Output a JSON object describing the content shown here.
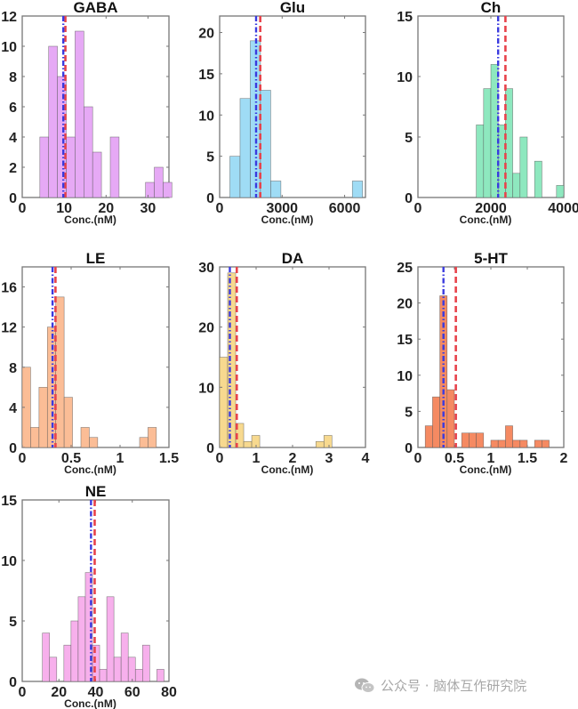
{
  "chart_data": [
    {
      "type": "bar",
      "title": "GABA",
      "xlabel": "Conc.(nM)",
      "ylabel": "",
      "color": "#e6a9f5",
      "xlim": [
        0,
        35
      ],
      "ylim": [
        0,
        12
      ],
      "xticks": [
        0,
        10,
        20,
        30
      ],
      "yticks": [
        0,
        2,
        4,
        6,
        8,
        10,
        12
      ],
      "bin_start": 4.2,
      "bin_width": 2.1,
      "counts": [
        4,
        10,
        8,
        4,
        11,
        6,
        3,
        0,
        4,
        0,
        0,
        0,
        1,
        2,
        1
      ],
      "median": 9.8,
      "mean": 10.3
    },
    {
      "type": "bar",
      "title": "Glu",
      "xlabel": "Conc.(nM)",
      "ylabel": "",
      "color": "#9fdcf5",
      "xlim": [
        0,
        7000
      ],
      "ylim": [
        0,
        22
      ],
      "xticks": [
        0,
        3000,
        6000
      ],
      "yticks": [
        0,
        5,
        10,
        15,
        20
      ],
      "bin_start": 490,
      "bin_width": 490,
      "counts": [
        5,
        12,
        19,
        13,
        2,
        0,
        0,
        0,
        0,
        0,
        0,
        0,
        2
      ],
      "median": 1750,
      "mean": 1950
    },
    {
      "type": "bar",
      "title": "Ch",
      "xlabel": "Conc.(nM)",
      "ylabel": "",
      "color": "#8ee8bf",
      "xlim": [
        0,
        4000
      ],
      "ylim": [
        0,
        15
      ],
      "xticks": [
        0,
        2000,
        4000
      ],
      "yticks": [
        0,
        5,
        10,
        15
      ],
      "bin_start": 1600,
      "bin_width": 200,
      "counts": [
        6,
        9,
        11,
        6,
        9,
        2,
        5,
        0,
        3,
        0,
        0,
        1
      ],
      "median": 2200,
      "mean": 2400
    },
    {
      "type": "bar",
      "title": "LE",
      "xlabel": "Conc.(nM)",
      "ylabel": "",
      "color": "#fbbd96",
      "xlim": [
        0,
        1.5
      ],
      "ylim": [
        0,
        18
      ],
      "xticks": [
        0,
        0.5,
        1,
        1.5
      ],
      "yticks": [
        0,
        4,
        8,
        12,
        16
      ],
      "bin_start": 0,
      "bin_width": 0.0857,
      "counts": [
        8,
        2,
        6,
        12,
        15,
        5,
        0,
        2,
        1,
        0,
        0,
        0,
        0,
        0,
        1,
        2
      ],
      "median": 0.31,
      "mean": 0.34
    },
    {
      "type": "bar",
      "title": "DA",
      "xlabel": "Conc.(nM)",
      "ylabel": "",
      "color": "#f7d98f",
      "xlim": [
        0,
        4
      ],
      "ylim": [
        0,
        30
      ],
      "xticks": [
        0,
        1,
        2,
        3,
        4
      ],
      "yticks": [
        0,
        10,
        20,
        30
      ],
      "bin_start": 0,
      "bin_width": 0.22,
      "counts": [
        15,
        29,
        4,
        1,
        2,
        0,
        0,
        0,
        0,
        0,
        0,
        0,
        1,
        2
      ],
      "median": 0.28,
      "mean": 0.47
    },
    {
      "type": "bar",
      "title": "5-HT",
      "xlabel": "Conc.(nM)",
      "ylabel": "",
      "color": "#f58a62",
      "xlim": [
        0,
        2
      ],
      "ylim": [
        0,
        25
      ],
      "xticks": [
        0,
        0.5,
        1,
        1.5,
        2
      ],
      "yticks": [
        0,
        5,
        10,
        15,
        20,
        25
      ],
      "bin_start": 0.1,
      "bin_width": 0.1,
      "counts": [
        3,
        7,
        21,
        8,
        0,
        2,
        2,
        2,
        0,
        1,
        1,
        3,
        1,
        1,
        0,
        1,
        1
      ],
      "median": 0.35,
      "mean": 0.52
    },
    {
      "type": "bar",
      "title": "NE",
      "xlabel": "Conc.(nM)",
      "ylabel": "",
      "color": "#f7b0ec",
      "xlim": [
        0,
        80
      ],
      "ylim": [
        0,
        15
      ],
      "xticks": [
        0,
        20,
        40,
        60,
        80
      ],
      "yticks": [
        0,
        5,
        10,
        15
      ],
      "bin_start": 11,
      "bin_width": 3.9,
      "counts": [
        4,
        2,
        0,
        3,
        5,
        7,
        9,
        3,
        1,
        7,
        2,
        4,
        2,
        1,
        3,
        0,
        1
      ],
      "median": 37.5,
      "mean": 39.5
    }
  ],
  "line_colors": {
    "median": "#3a3adf",
    "mean": "#e8434b"
  },
  "watermark": {
    "text": "公众号 · 脑体互作研究院",
    "icon": "wechat-icon"
  }
}
